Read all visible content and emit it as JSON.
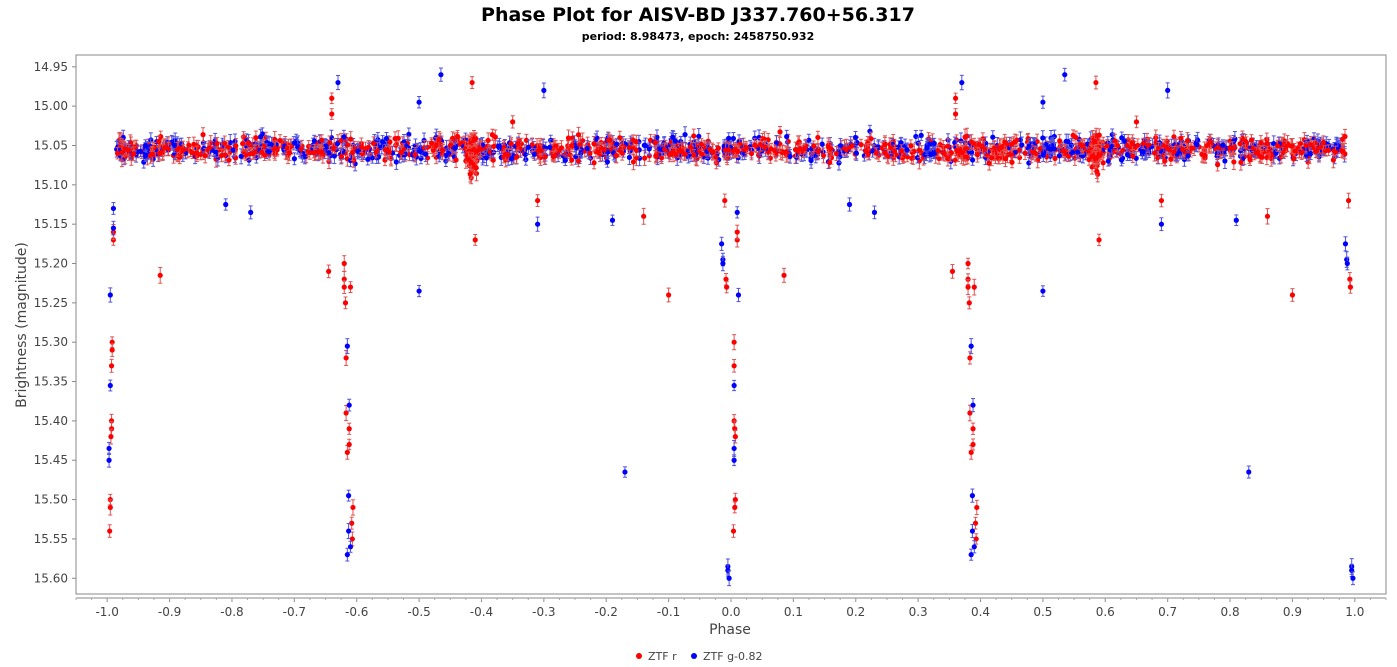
{
  "chart_data": {
    "type": "scatter",
    "title": "Phase Plot for AISV-BD J337.760+56.317",
    "subtitle": "period: 8.98473, epoch: 2458750.932",
    "xlabel": "Phase",
    "ylabel": "Brightness (magnitude)",
    "xlim": [
      -1.05,
      1.05
    ],
    "ylim": [
      15.62,
      14.935
    ],
    "y_inverted": true,
    "grid": false,
    "legend_position": "bottom-center",
    "x_ticks": [
      "-1.0",
      "-0.9",
      "-0.8",
      "-0.7",
      "-0.6",
      "-0.5",
      "-0.4",
      "-0.3",
      "-0.2",
      "-0.1",
      "0.0",
      "0.1",
      "0.2",
      "0.3",
      "0.4",
      "0.5",
      "0.6",
      "0.7",
      "0.8",
      "0.9",
      "1.0"
    ],
    "y_ticks": [
      "14.95",
      "15.00",
      "15.05",
      "15.10",
      "15.15",
      "15.20",
      "15.25",
      "15.30",
      "15.35",
      "15.40",
      "15.45",
      "15.50",
      "15.55",
      "15.60"
    ],
    "colors": {
      "ztf_r": "#ff0000",
      "ztf_g": "#0000ff",
      "errorbar_r": "#e05050",
      "errorbar_g": "#5050e0"
    },
    "series": [
      {
        "name": "ZTF r",
        "color": "#ff0000",
        "baseline": {
          "x_from": -0.985,
          "x_to": 0.985,
          "mean": 15.055,
          "scatter": 0.022,
          "count": 900
        },
        "points": [
          [
            -0.99,
            15.17
          ],
          [
            -0.99,
            15.16
          ],
          [
            -0.992,
            15.3
          ],
          [
            -0.992,
            15.31
          ],
          [
            -0.993,
            15.33
          ],
          [
            -0.993,
            15.4
          ],
          [
            -0.993,
            15.41
          ],
          [
            -0.994,
            15.42
          ],
          [
            -0.995,
            15.5
          ],
          [
            -0.995,
            15.51
          ],
          [
            -0.996,
            15.54
          ],
          [
            -0.915,
            15.215
          ],
          [
            -0.645,
            15.21
          ],
          [
            -0.64,
            14.99
          ],
          [
            -0.64,
            15.01
          ],
          [
            -0.62,
            15.2
          ],
          [
            -0.62,
            15.22
          ],
          [
            -0.62,
            15.23
          ],
          [
            -0.618,
            15.25
          ],
          [
            -0.617,
            15.32
          ],
          [
            -0.617,
            15.39
          ],
          [
            -0.615,
            15.44
          ],
          [
            -0.612,
            15.41
          ],
          [
            -0.612,
            15.43
          ],
          [
            -0.61,
            15.23
          ],
          [
            -0.608,
            15.53
          ],
          [
            -0.607,
            15.55
          ],
          [
            -0.606,
            15.51
          ],
          [
            -0.415,
            14.97
          ],
          [
            -0.41,
            15.17
          ],
          [
            -0.35,
            15.02
          ],
          [
            -0.31,
            15.12
          ],
          [
            -0.14,
            15.14
          ],
          [
            -0.1,
            15.24
          ],
          [
            -0.01,
            15.12
          ],
          [
            -0.008,
            15.22
          ],
          [
            -0.007,
            15.23
          ],
          [
            0.005,
            15.3
          ],
          [
            0.005,
            15.33
          ],
          [
            0.005,
            15.4
          ],
          [
            0.006,
            15.41
          ],
          [
            0.007,
            15.42
          ],
          [
            0.007,
            15.5
          ],
          [
            0.006,
            15.51
          ],
          [
            0.004,
            15.54
          ],
          [
            0.01,
            15.17
          ],
          [
            0.01,
            15.16
          ],
          [
            0.085,
            15.215
          ],
          [
            0.355,
            15.21
          ],
          [
            0.36,
            14.99
          ],
          [
            0.36,
            15.01
          ],
          [
            0.38,
            15.2
          ],
          [
            0.38,
            15.22
          ],
          [
            0.38,
            15.23
          ],
          [
            0.382,
            15.25
          ],
          [
            0.383,
            15.32
          ],
          [
            0.383,
            15.39
          ],
          [
            0.385,
            15.44
          ],
          [
            0.388,
            15.41
          ],
          [
            0.388,
            15.43
          ],
          [
            0.39,
            15.23
          ],
          [
            0.392,
            15.53
          ],
          [
            0.393,
            15.55
          ],
          [
            0.394,
            15.51
          ],
          [
            0.585,
            14.97
          ],
          [
            0.59,
            15.17
          ],
          [
            0.65,
            15.02
          ],
          [
            0.69,
            15.12
          ],
          [
            0.86,
            15.14
          ],
          [
            0.9,
            15.24
          ],
          [
            0.99,
            15.12
          ],
          [
            0.992,
            15.22
          ],
          [
            0.993,
            15.23
          ]
        ]
      },
      {
        "name": "ZTF g-0.82",
        "color": "#0000ff",
        "baseline": {
          "x_from": -0.985,
          "x_to": 0.985,
          "mean": 15.055,
          "scatter": 0.022,
          "count": 700
        },
        "points": [
          [
            -0.99,
            15.13
          ],
          [
            -0.99,
            15.155
          ],
          [
            -0.995,
            15.24
          ],
          [
            -0.995,
            15.355
          ],
          [
            -0.997,
            15.435
          ],
          [
            -0.997,
            15.45
          ],
          [
            -0.81,
            15.125
          ],
          [
            -0.77,
            15.135
          ],
          [
            -0.63,
            14.97
          ],
          [
            -0.615,
            15.305
          ],
          [
            -0.612,
            15.38
          ],
          [
            -0.613,
            15.495
          ],
          [
            -0.613,
            15.54
          ],
          [
            -0.61,
            15.56
          ],
          [
            -0.615,
            15.57
          ],
          [
            -0.5,
            15.235
          ],
          [
            -0.5,
            14.995
          ],
          [
            -0.465,
            14.96
          ],
          [
            -0.3,
            14.98
          ],
          [
            -0.31,
            15.15
          ],
          [
            -0.19,
            15.145
          ],
          [
            -0.17,
            15.465
          ],
          [
            -0.015,
            15.175
          ],
          [
            -0.013,
            15.195
          ],
          [
            -0.013,
            15.2
          ],
          [
            -0.005,
            15.585
          ],
          [
            -0.005,
            15.59
          ],
          [
            -0.003,
            15.6
          ],
          [
            0.005,
            15.355
          ],
          [
            0.005,
            15.435
          ],
          [
            0.005,
            15.45
          ],
          [
            0.01,
            15.135
          ],
          [
            0.012,
            15.24
          ],
          [
            0.19,
            15.125
          ],
          [
            0.23,
            15.135
          ],
          [
            0.37,
            14.97
          ],
          [
            0.385,
            15.305
          ],
          [
            0.388,
            15.38
          ],
          [
            0.387,
            15.495
          ],
          [
            0.387,
            15.54
          ],
          [
            0.39,
            15.56
          ],
          [
            0.385,
            15.57
          ],
          [
            0.5,
            15.235
          ],
          [
            0.5,
            14.995
          ],
          [
            0.535,
            14.96
          ],
          [
            0.7,
            14.98
          ],
          [
            0.69,
            15.15
          ],
          [
            0.81,
            15.145
          ],
          [
            0.83,
            15.465
          ],
          [
            0.985,
            15.175
          ],
          [
            0.987,
            15.195
          ],
          [
            0.988,
            15.2
          ],
          [
            0.995,
            15.585
          ],
          [
            0.995,
            15.59
          ],
          [
            0.997,
            15.6
          ]
        ]
      }
    ]
  }
}
